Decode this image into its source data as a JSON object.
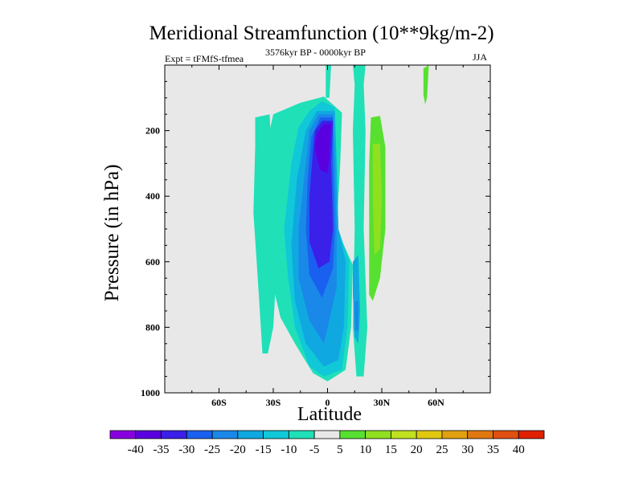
{
  "chart_data": {
    "type": "contour",
    "title": "Meridional Streamfunction (10**9kg/m-2)",
    "left_string": "Expt = tFMfS-tfmea",
    "center_string": "3576kyr BP - 0000kyr BP",
    "right_string": "JJA",
    "xlabel": "Latitude",
    "ylabel": "Pressure (in hPa)",
    "xlim": [
      -90,
      90
    ],
    "ylim": [
      1000,
      0
    ],
    "x_ticks": [
      {
        "value": -60,
        "label": "60S"
      },
      {
        "value": -30,
        "label": "30S"
      },
      {
        "value": 0,
        "label": "0"
      },
      {
        "value": 30,
        "label": "30N"
      },
      {
        "value": 60,
        "label": "60N"
      }
    ],
    "y_ticks": [
      {
        "value": 200,
        "label": "200"
      },
      {
        "value": 400,
        "label": "400"
      },
      {
        "value": 600,
        "label": "600"
      },
      {
        "value": 800,
        "label": "800"
      },
      {
        "value": 1000,
        "label": "1000"
      }
    ],
    "colorbar": {
      "levels": [
        "-40",
        "-35",
        "-30",
        "-25",
        "-20",
        "-15",
        "-10",
        "-5",
        "5",
        "10",
        "15",
        "20",
        "25",
        "30",
        "35",
        "40"
      ],
      "colors": [
        "#8800e0",
        "#5a00e0",
        "#3a20e8",
        "#1a60f0",
        "#1a88e8",
        "#10a8e0",
        "#10c8d8",
        "#20e0b8",
        "#e8e8e8",
        "#58e030",
        "#90e020",
        "#c0e020",
        "#e0c810",
        "#e0a010",
        "#e07810",
        "#e05010",
        "#e02000"
      ]
    },
    "contours": [
      {
        "level": "-10",
        "color": "#20e0b8",
        "region": [
          [
            -30,
            150
          ],
          [
            -15,
            115
          ],
          [
            -2,
            96
          ],
          [
            8,
            145
          ],
          [
            7,
            300
          ],
          [
            5,
            500
          ],
          [
            14,
            610
          ],
          [
            13,
            800
          ],
          [
            10,
            930
          ],
          [
            0,
            965
          ],
          [
            -8,
            940
          ],
          [
            -18,
            850
          ],
          [
            -26,
            770
          ],
          [
            -32,
            630
          ],
          [
            -35,
            400
          ],
          [
            -32,
            200
          ]
        ]
      },
      {
        "level": "-10",
        "color": "#20e0b8",
        "region": [
          [
            -40,
            160
          ],
          [
            -32,
            150
          ],
          [
            -30,
            400
          ],
          [
            -28,
            600
          ],
          [
            -30,
            800
          ],
          [
            -33,
            880
          ],
          [
            -36,
            880
          ],
          [
            -38,
            700
          ],
          [
            -41,
            450
          ],
          [
            -40,
            250
          ]
        ]
      },
      {
        "level": "-10",
        "color": "#20e0b8",
        "region": [
          [
            -1,
            0
          ],
          [
            2,
            0
          ],
          [
            1,
            100
          ],
          [
            -1,
            100
          ]
        ]
      },
      {
        "level": "-10",
        "color": "#20e0b8",
        "region": [
          [
            14,
            0
          ],
          [
            21,
            0
          ],
          [
            20,
            60
          ],
          [
            21,
            200
          ],
          [
            20,
            500
          ],
          [
            22,
            800
          ],
          [
            20,
            950
          ],
          [
            16,
            950
          ],
          [
            14,
            800
          ],
          [
            15,
            500
          ],
          [
            14,
            200
          ],
          [
            15,
            60
          ]
        ]
      },
      {
        "level": "-15",
        "color": "#10c8d8",
        "region": [
          [
            -10,
            140
          ],
          [
            -3,
            110
          ],
          [
            4,
            130
          ],
          [
            5,
            300
          ],
          [
            6,
            500
          ],
          [
            12,
            600
          ],
          [
            11,
            800
          ],
          [
            8,
            930
          ],
          [
            -2,
            950
          ],
          [
            -10,
            920
          ],
          [
            -18,
            800
          ],
          [
            -22,
            640
          ],
          [
            -24,
            500
          ],
          [
            -20,
            300
          ],
          [
            -16,
            190
          ]
        ]
      },
      {
        "level": "-20",
        "color": "#10a8e0",
        "region": [
          [
            -6,
            140
          ],
          [
            4,
            140
          ],
          [
            5,
            300
          ],
          [
            6,
            500
          ],
          [
            10,
            600
          ],
          [
            9,
            800
          ],
          [
            6,
            900
          ],
          [
            -2,
            920
          ],
          [
            -12,
            850
          ],
          [
            -18,
            720
          ],
          [
            -20,
            550
          ],
          [
            -17,
            350
          ],
          [
            -12,
            200
          ]
        ]
      },
      {
        "level": "-25",
        "color": "#1a88e8",
        "region": [
          [
            -5,
            150
          ],
          [
            3,
            150
          ],
          [
            4,
            300
          ],
          [
            5,
            500
          ],
          [
            5,
            680
          ],
          [
            -2,
            850
          ],
          [
            -10,
            780
          ],
          [
            -16,
            650
          ],
          [
            -16,
            500
          ],
          [
            -13,
            350
          ],
          [
            -10,
            200
          ]
        ]
      },
      {
        "level": "-30",
        "color": "#1a60f0",
        "region": [
          [
            -4,
            160
          ],
          [
            3,
            160
          ],
          [
            3,
            300
          ],
          [
            4,
            500
          ],
          [
            3,
            620
          ],
          [
            -3,
            710
          ],
          [
            -10,
            640
          ],
          [
            -12,
            500
          ],
          [
            -11,
            350
          ],
          [
            -9,
            220
          ]
        ]
      },
      {
        "level": "-35",
        "color": "#3a20e8",
        "region": [
          [
            -3,
            170
          ],
          [
            3,
            170
          ],
          [
            2,
            300
          ],
          [
            3,
            500
          ],
          [
            1,
            600
          ],
          [
            -5,
            620
          ],
          [
            -10,
            540
          ],
          [
            -10,
            400
          ],
          [
            -8,
            260
          ],
          [
            -7,
            200
          ]
        ]
      },
      {
        "level": "-40",
        "color": "#5a00e0",
        "region": [
          [
            -2,
            180
          ],
          [
            2,
            180
          ],
          [
            1,
            280
          ],
          [
            0,
            330
          ],
          [
            -4,
            320
          ],
          [
            -7,
            260
          ],
          [
            -6,
            210
          ]
        ]
      },
      {
        "level": "-20",
        "color": "#10a8e0",
        "region": [
          [
            14,
            600
          ],
          [
            17,
            580
          ],
          [
            18,
            750
          ],
          [
            17,
            850
          ],
          [
            15,
            830
          ],
          [
            14,
            700
          ]
        ]
      },
      {
        "level": "-25",
        "color": "#1a88e8",
        "region": [
          [
            15,
            720
          ],
          [
            17,
            720
          ],
          [
            17,
            810
          ],
          [
            15,
            810
          ]
        ]
      },
      {
        "level": "5",
        "color": "#58e030",
        "region": [
          [
            24,
            160
          ],
          [
            29,
            155
          ],
          [
            32,
            250
          ],
          [
            32,
            500
          ],
          [
            29,
            650
          ],
          [
            25,
            720
          ],
          [
            23,
            700
          ],
          [
            23,
            500
          ],
          [
            23,
            300
          ]
        ]
      },
      {
        "level": "10",
        "color": "#90e020",
        "region": [
          [
            25,
            240
          ],
          [
            29,
            240
          ],
          [
            30,
            400
          ],
          [
            29,
            560
          ],
          [
            26,
            580
          ],
          [
            25,
            400
          ]
        ]
      },
      {
        "level": "5",
        "color": "#58e030",
        "region": [
          [
            53,
            10
          ],
          [
            56,
            0
          ],
          [
            55,
            100
          ],
          [
            54,
            120
          ],
          [
            53,
            90
          ]
        ]
      }
    ]
  }
}
